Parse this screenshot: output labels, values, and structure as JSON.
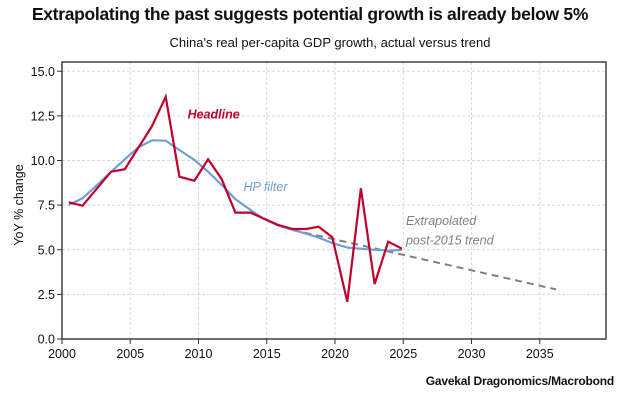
{
  "chart_data": {
    "type": "line",
    "title": "Extrapolating the past suggests potential growth is already below 5%",
    "subtitle": "China's real per-capita GDP growth, actual versus trend",
    "source": "Gavekal Dragonomics/Macrobond",
    "xlabel": "",
    "ylabel": "YoY % change",
    "xlim": [
      2000,
      2037
    ],
    "ylim": [
      0,
      15.5
    ],
    "x_ticks": [
      2000,
      2005,
      2010,
      2015,
      2020,
      2025,
      2030,
      2035
    ],
    "x_tick_labels": [
      "2000",
      "2005",
      "2010",
      "2015",
      "2020",
      "2025",
      "2030",
      "2035"
    ],
    "y_ticks": [
      0,
      2.5,
      5,
      7.5,
      10,
      12.5,
      15
    ],
    "y_tick_labels": [
      "0.0",
      "2.5",
      "5.0",
      "7.5",
      "10.0",
      "12.5",
      "15.0"
    ],
    "grid": true,
    "series": [
      {
        "name": "Headline",
        "color": "#c0002a",
        "style": "solid",
        "x": [
          2000.5,
          2001.5,
          2003.6,
          2004.6,
          2006.6,
          2007.6,
          2008.6,
          2009.7,
          2010.7,
          2011.7,
          2012.7,
          2013.8,
          2015.8,
          2016.9,
          2017.9,
          2018.8,
          2019.8,
          2020.9,
          2021.9,
          2022.9,
          2023.9,
          2024.9
        ],
        "values": [
          7.66,
          7.47,
          9.37,
          9.51,
          11.93,
          13.57,
          9.09,
          8.87,
          10.07,
          8.95,
          7.08,
          7.08,
          6.4,
          6.16,
          6.16,
          6.29,
          5.7,
          2.09,
          8.44,
          3.08,
          5.45,
          5.06
        ]
      },
      {
        "name": "HP filter",
        "color": "#6f9fd6",
        "style": "solid",
        "x": [
          2000.5,
          2001.5,
          2002.5,
          2003.6,
          2004.6,
          2005.6,
          2006.6,
          2007.6,
          2008.6,
          2009.7,
          2010.7,
          2011.7,
          2012.7,
          2013.8,
          2014.7,
          2015.8,
          2016.9,
          2017.9,
          2018.8,
          2019.8,
          2020.9,
          2021.9,
          2022.9,
          2023.9,
          2024.9
        ],
        "values": [
          7.51,
          7.88,
          8.57,
          9.37,
          10.07,
          10.74,
          11.13,
          11.11,
          10.59,
          10.03,
          9.37,
          8.63,
          7.83,
          7.23,
          6.76,
          6.37,
          6.11,
          5.9,
          5.68,
          5.38,
          5.12,
          5.06,
          5.0,
          4.95,
          4.99
        ]
      },
      {
        "name": "Extrapolated post-2015 trend",
        "color": "#808080",
        "style": "dashed",
        "x": [
          2016.9,
          2036.2
        ],
        "values": [
          6.11,
          2.78
        ]
      }
    ],
    "annotations": [
      {
        "text": "Headline",
        "color": "#c0002a",
        "x": 2009.2,
        "y": 12.35
      },
      {
        "text": "HP filter",
        "color": "#6f9fd6",
        "x": 2013.3,
        "y": 8.3
      },
      {
        "text": "Extrapolated",
        "color": "#808080",
        "x": 2025.2,
        "y": 6.4
      },
      {
        "text": "post-2015 trend",
        "color": "#808080",
        "x": 2025.2,
        "y": 5.3
      }
    ]
  }
}
